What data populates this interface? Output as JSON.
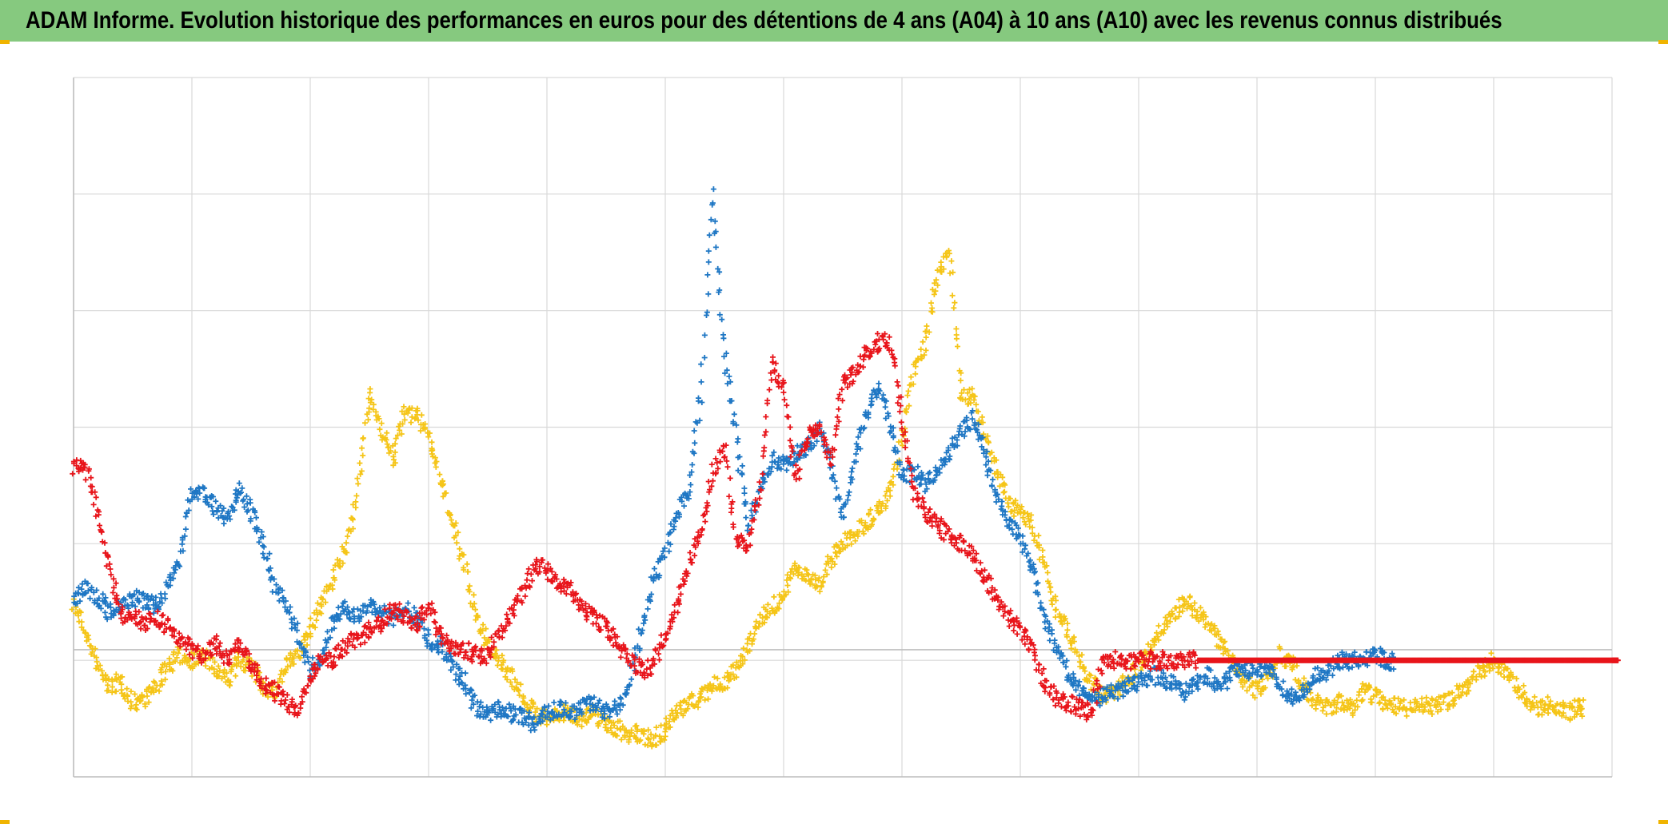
{
  "title": "ADAM Informe. Evolution historique des performances en euros pour des détentions de 4 ans (A04) à 10 ans (A10) avec les revenus connus distribués",
  "colors": {
    "title_bar": "#86c97f",
    "blue_series": "#1f77c4",
    "red_series": "#e8151b",
    "yellow_series": "#f5c518",
    "grid": "#d9d9d9",
    "zero_line": "#bfbfbf"
  },
  "chart_data": {
    "type": "scatter",
    "title": "ADAM Informe. Evolution historique des performances en euros pour des détentions de 4 ans (A04) à 10 ans (A10) avec les revenus connus distribués",
    "marker": "plus",
    "xlabel": "",
    "ylabel": "",
    "xlim": [
      0,
      13
    ],
    "ylim": [
      -1.2,
      5.4
    ],
    "zero_line": 0,
    "grid": true,
    "legend": "none",
    "tick_labels_visible": false,
    "series": [
      {
        "color": "#1f77c4",
        "x": [
          0.0,
          0.1,
          0.2,
          0.3,
          0.4,
          0.5,
          0.6,
          0.7,
          0.8,
          0.9,
          1.0,
          1.1,
          1.2,
          1.3,
          1.4,
          1.5,
          1.6,
          1.7,
          1.8,
          1.9,
          2.0,
          2.1,
          2.2,
          2.3,
          2.4,
          2.5,
          2.6,
          2.7,
          2.8,
          2.9,
          3.0,
          3.1,
          3.2,
          3.3,
          3.4,
          3.5,
          3.6,
          3.7,
          3.8,
          3.9,
          4.0,
          4.1,
          4.2,
          4.3,
          4.4,
          4.5,
          4.6,
          4.7,
          4.8,
          4.9,
          5.0,
          5.1,
          5.2,
          5.3,
          5.4,
          5.5,
          5.6,
          5.7,
          5.8,
          5.9,
          6.0,
          6.1,
          6.2,
          6.3,
          6.4,
          6.5,
          6.6,
          6.7,
          6.8,
          6.9,
          7.0,
          7.1,
          7.2,
          7.3,
          7.4,
          7.5,
          7.6,
          7.7,
          7.8,
          7.9,
          8.0,
          8.1,
          8.2,
          8.3,
          8.4,
          8.5,
          8.6,
          8.7,
          8.8,
          8.9,
          9.0,
          9.1,
          9.2,
          9.3,
          9.4,
          9.5,
          9.6,
          9.7,
          9.8,
          9.9,
          10.0,
          10.1,
          10.2,
          10.3,
          10.4,
          10.5,
          10.6,
          10.7,
          10.8,
          10.9,
          11.0,
          11.1
        ],
        "y": [
          0.45,
          0.6,
          0.5,
          0.35,
          0.4,
          0.5,
          0.45,
          0.4,
          0.6,
          0.9,
          1.45,
          1.5,
          1.35,
          1.25,
          1.55,
          1.3,
          1.0,
          0.6,
          0.4,
          0.15,
          -0.2,
          -0.05,
          0.3,
          0.4,
          0.3,
          0.45,
          0.35,
          0.3,
          0.4,
          0.3,
          0.1,
          0.05,
          -0.15,
          -0.3,
          -0.55,
          -0.6,
          -0.55,
          -0.6,
          -0.65,
          -0.7,
          -0.6,
          -0.55,
          -0.6,
          -0.55,
          -0.5,
          -0.6,
          -0.55,
          -0.3,
          0.2,
          0.65,
          0.9,
          1.3,
          1.5,
          2.4,
          4.3,
          2.8,
          2.0,
          1.2,
          1.5,
          1.8,
          1.75,
          1.85,
          1.9,
          2.1,
          1.75,
          1.25,
          1.8,
          2.2,
          2.5,
          2.1,
          1.6,
          1.7,
          1.55,
          1.7,
          1.85,
          2.05,
          2.2,
          1.85,
          1.45,
          1.2,
          1.05,
          0.75,
          0.3,
          0.05,
          -0.2,
          -0.35,
          -0.45,
          -0.45,
          -0.4,
          -0.35,
          -0.3,
          -0.25,
          -0.25,
          -0.35,
          -0.4,
          -0.3,
          -0.25,
          -0.35,
          -0.2,
          -0.2,
          -0.2,
          -0.15,
          -0.35,
          -0.45,
          -0.4,
          -0.25,
          -0.2,
          -0.1,
          -0.1,
          -0.1,
          -0.05,
          -0.1
        ],
        "name": ""
      },
      {
        "color": "#e8151b",
        "x": [
          0.0,
          0.1,
          0.2,
          0.3,
          0.4,
          0.5,
          0.6,
          0.7,
          0.8,
          0.9,
          1.0,
          1.1,
          1.2,
          1.3,
          1.4,
          1.5,
          1.6,
          1.7,
          1.8,
          1.9,
          2.0,
          2.1,
          2.2,
          2.3,
          2.4,
          2.5,
          2.6,
          2.7,
          2.8,
          2.9,
          3.0,
          3.1,
          3.2,
          3.3,
          3.4,
          3.5,
          3.6,
          3.7,
          3.8,
          3.9,
          4.0,
          4.1,
          4.2,
          4.3,
          4.4,
          4.5,
          4.6,
          4.7,
          4.8,
          4.9,
          5.0,
          5.1,
          5.2,
          5.3,
          5.4,
          5.5,
          5.6,
          5.7,
          5.8,
          5.9,
          6.0,
          6.1,
          6.2,
          6.3,
          6.4,
          6.5,
          6.6,
          6.7,
          6.8,
          6.9,
          7.0,
          7.1,
          7.2,
          7.3,
          7.4,
          7.5,
          7.6,
          7.7,
          7.8,
          7.9,
          8.0,
          8.1,
          8.2,
          8.3,
          8.4,
          8.5,
          8.6,
          8.7,
          8.8,
          8.9,
          9.0,
          9.1,
          9.2,
          9.3,
          9.4,
          9.5,
          9.6,
          9.7,
          9.8,
          9.9,
          10.0,
          10.1,
          10.2,
          10.3,
          10.4,
          10.5,
          10.6,
          10.7,
          10.8,
          10.9,
          11.0,
          11.1,
          11.2,
          11.3,
          11.4,
          11.5,
          11.6,
          11.7,
          11.8,
          11.9,
          12.0,
          12.1,
          12.2,
          12.3,
          12.4,
          12.5,
          12.6,
          12.7,
          12.8,
          12.9,
          13.0
        ],
        "y": [
          1.7,
          1.75,
          1.3,
          0.8,
          0.35,
          0.3,
          0.25,
          0.3,
          0.2,
          0.1,
          0.0,
          -0.05,
          0.05,
          -0.1,
          0.05,
          -0.15,
          -0.3,
          -0.4,
          -0.5,
          -0.55,
          -0.25,
          -0.1,
          -0.1,
          0.05,
          0.1,
          0.2,
          0.25,
          0.4,
          0.3,
          0.25,
          0.4,
          0.15,
          0.05,
          0.0,
          -0.05,
          -0.05,
          0.15,
          0.35,
          0.55,
          0.8,
          0.75,
          0.6,
          0.55,
          0.4,
          0.3,
          0.2,
          0.05,
          -0.1,
          -0.2,
          -0.15,
          0.15,
          0.4,
          0.8,
          1.1,
          1.65,
          1.9,
          1.0,
          1.0,
          1.5,
          2.7,
          2.5,
          1.6,
          2.0,
          2.1,
          1.8,
          2.5,
          2.6,
          2.8,
          2.9,
          2.9,
          2.2,
          1.5,
          1.3,
          1.2,
          1.05,
          1.0,
          0.9,
          0.7,
          0.5,
          0.3,
          0.2,
          0.0,
          -0.3,
          -0.45,
          -0.5,
          -0.55,
          -0.6,
          -0.1,
          -0.1,
          -0.1,
          -0.1,
          -0.1,
          -0.1,
          -0.1,
          -0.1,
          -0.1,
          -0.1,
          -0.1,
          -0.1,
          -0.1,
          -0.1,
          -0.1,
          -0.1,
          -0.1,
          -0.1,
          -0.1,
          -0.1,
          -0.1,
          -0.1,
          -0.1,
          -0.1,
          -0.1,
          -0.1,
          -0.1,
          -0.1,
          -0.1,
          -0.1,
          -0.1,
          -0.1,
          -0.1,
          -0.1,
          -0.1,
          -0.1,
          -0.1,
          -0.1,
          -0.1,
          -0.1,
          -0.1,
          -0.1,
          -0.1,
          -0.1
        ],
        "name": ""
      },
      {
        "color": "#f5c518",
        "x": [
          0.0,
          0.1,
          0.2,
          0.3,
          0.4,
          0.5,
          0.6,
          0.7,
          0.8,
          0.9,
          1.0,
          1.1,
          1.2,
          1.3,
          1.4,
          1.5,
          1.6,
          1.7,
          1.8,
          1.9,
          2.0,
          2.1,
          2.2,
          2.3,
          2.4,
          2.5,
          2.6,
          2.7,
          2.8,
          2.9,
          3.0,
          3.1,
          3.2,
          3.3,
          3.4,
          3.5,
          3.6,
          3.7,
          3.8,
          3.9,
          4.0,
          4.1,
          4.2,
          4.3,
          4.4,
          4.5,
          4.6,
          4.7,
          4.8,
          4.9,
          5.0,
          5.1,
          5.2,
          5.3,
          5.4,
          5.5,
          5.6,
          5.7,
          5.8,
          5.9,
          6.0,
          6.1,
          6.2,
          6.3,
          6.4,
          6.5,
          6.6,
          6.7,
          6.8,
          6.9,
          7.0,
          7.1,
          7.2,
          7.3,
          7.4,
          7.5,
          7.6,
          7.7,
          7.8,
          7.9,
          8.0,
          8.1,
          8.2,
          8.3,
          8.4,
          8.5,
          8.6,
          8.7,
          8.8,
          8.9,
          9.0,
          9.1,
          9.2,
          9.3,
          9.4,
          9.5,
          9.6,
          9.7,
          9.8,
          9.9,
          10.0,
          10.1,
          10.2,
          10.3,
          10.4,
          10.5,
          10.6,
          10.7,
          10.8,
          10.9,
          11.0,
          11.1,
          11.2,
          11.3,
          11.4,
          11.5,
          11.6,
          11.7,
          11.8,
          11.9,
          12.0,
          12.1,
          12.2,
          12.3,
          12.4,
          12.5,
          12.6,
          12.7
        ],
        "y": [
          0.45,
          0.15,
          -0.15,
          -0.35,
          -0.3,
          -0.5,
          -0.45,
          -0.35,
          -0.15,
          -0.05,
          -0.1,
          -0.05,
          -0.2,
          -0.3,
          -0.1,
          -0.15,
          -0.35,
          -0.4,
          -0.15,
          -0.05,
          0.2,
          0.45,
          0.7,
          0.95,
          1.5,
          2.4,
          2.1,
          1.8,
          2.25,
          2.2,
          2.05,
          1.6,
          1.2,
          0.8,
          0.3,
          0.05,
          -0.1,
          -0.25,
          -0.45,
          -0.6,
          -0.65,
          -0.6,
          -0.6,
          -0.65,
          -0.6,
          -0.7,
          -0.75,
          -0.8,
          -0.8,
          -0.85,
          -0.75,
          -0.6,
          -0.5,
          -0.45,
          -0.35,
          -0.3,
          -0.2,
          0.05,
          0.3,
          0.4,
          0.5,
          0.8,
          0.7,
          0.6,
          0.85,
          1.0,
          1.1,
          1.2,
          1.3,
          1.5,
          2.0,
          2.6,
          2.9,
          3.5,
          3.8,
          2.4,
          2.4,
          2.0,
          1.7,
          1.4,
          1.3,
          1.2,
          0.8,
          0.4,
          0.2,
          -0.1,
          -0.3,
          -0.45,
          -0.4,
          -0.3,
          -0.15,
          0.0,
          0.2,
          0.35,
          0.45,
          0.35,
          0.2,
          0.05,
          -0.15,
          -0.3,
          -0.4,
          -0.25,
          -0.05,
          -0.15,
          -0.35,
          -0.5,
          -0.55,
          -0.5,
          -0.55,
          -0.4,
          -0.45,
          -0.5,
          -0.55,
          -0.55,
          -0.5,
          -0.55,
          -0.5,
          -0.4,
          -0.3,
          -0.2,
          -0.1,
          -0.2,
          -0.35,
          -0.5,
          -0.55,
          -0.5,
          -0.6,
          -0.55
        ],
        "name": ""
      }
    ]
  }
}
